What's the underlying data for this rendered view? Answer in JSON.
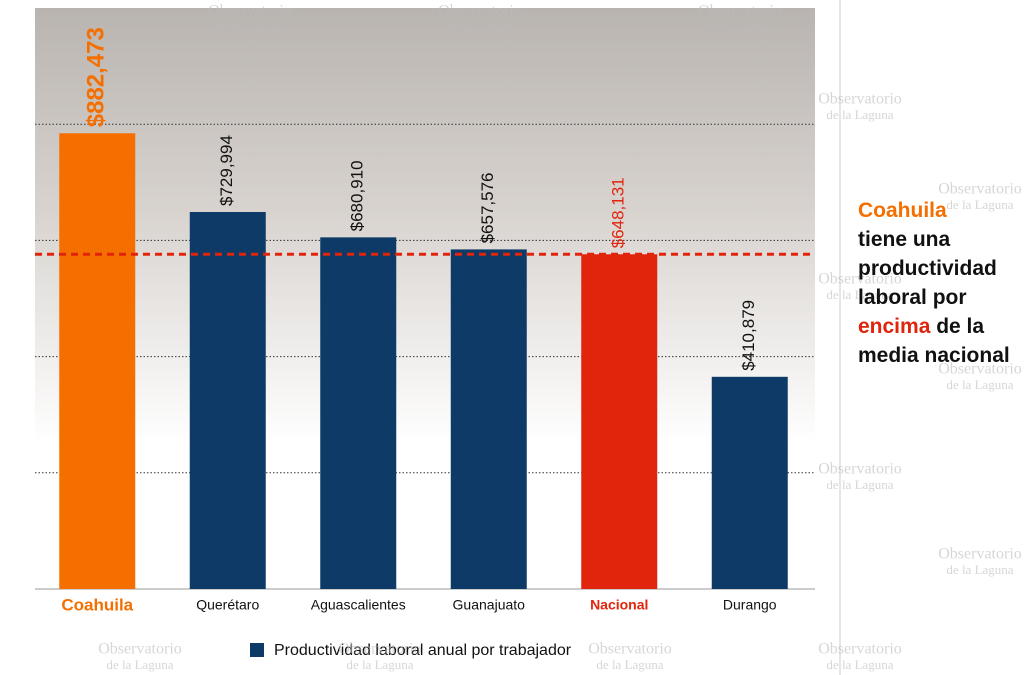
{
  "chart_data": {
    "type": "bar",
    "categories": [
      "Coahuila",
      "Querétaro",
      "Aguascalientes",
      "Guanajuato",
      "Nacional",
      "Durango"
    ],
    "values": [
      882473,
      729994,
      680910,
      657576,
      648131,
      410879
    ],
    "value_labels": [
      "$882,473",
      "$729,994",
      "$680,910",
      "$657,576",
      "$648,131",
      "$410,879"
    ],
    "color": "#0d3a66",
    "colors": [
      "#f56f00",
      "#0d3a66",
      "#0d3a66",
      "#0d3a66",
      "#e1240c",
      "#0d3a66"
    ],
    "legend": "Productividad laboral  anual por trabajador",
    "ylim": [
      0,
      1125000
    ],
    "yticks": [
      225000,
      450000,
      675000,
      900000
    ],
    "grid": true,
    "reference_line": {
      "index": 4,
      "color": "#e1240c"
    },
    "annotation": [
      [
        {
          "text": "Coahuila",
          "color": "#f56f00"
        }
      ],
      [
        {
          "text": "tiene una",
          "color": "#111111"
        }
      ],
      [
        {
          "text": "productividad",
          "color": "#111111"
        }
      ],
      [
        {
          "text": "laboral por",
          "color": "#111111"
        }
      ],
      [
        {
          "text": "encima",
          "color": "#e1240c"
        },
        {
          "text": " de la",
          "color": "#111111"
        }
      ],
      [
        {
          "text": "media nacional",
          "color": "#111111"
        }
      ]
    ],
    "watermark": [
      "Observatorio",
      "de la Laguna"
    ]
  }
}
